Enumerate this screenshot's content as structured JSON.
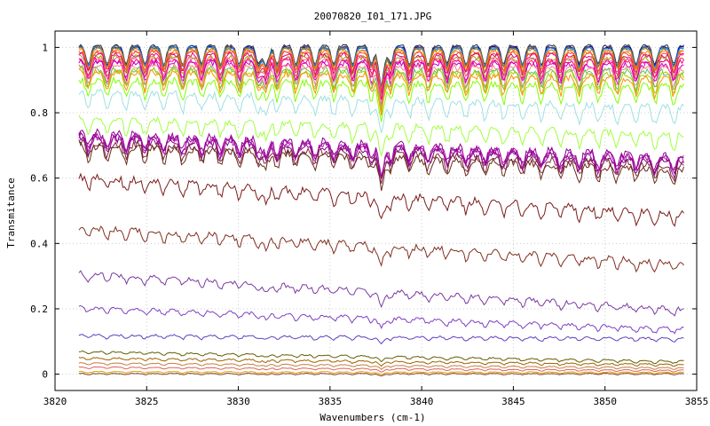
{
  "chart_data": {
    "type": "line",
    "title": "20070820_I01_171.JPG",
    "xlabel": "Wavenumbers (cm-1)",
    "ylabel": "Transmitance",
    "xlim": [
      3820,
      3855
    ],
    "ylim": [
      -0.05,
      1.05
    ],
    "x_range": [
      3821.3,
      3854.3
    ],
    "xticks": [
      3820,
      3825,
      3830,
      3835,
      3840,
      3845,
      3850,
      3855
    ],
    "yticks": [
      0,
      0.2,
      0.4,
      0.6,
      0.8,
      1
    ],
    "ytick_labels": [
      "0",
      "0.2",
      "0.4",
      "0.6",
      "0.8",
      "1"
    ],
    "grid": true,
    "absorption_lines": [
      {
        "x": 3831.5,
        "relative_depth": 0.45
      },
      {
        "x": 3837.8,
        "relative_depth": 0.9
      }
    ],
    "series": [
      {
        "color": "#2f2f2f",
        "start": 1.005,
        "end": 1.005,
        "noise": 0.004
      },
      {
        "color": "#4f4f4f",
        "start": 1.003,
        "end": 1.002,
        "noise": 0.004
      },
      {
        "color": "#0000c0",
        "start": 1.0,
        "end": 1.0,
        "noise": 0.003
      },
      {
        "color": "#6d6d6d",
        "start": 1.0,
        "end": 0.998,
        "noise": 0.004
      },
      {
        "color": "#0080ff",
        "start": 0.998,
        "end": 0.996,
        "noise": 0.004
      },
      {
        "color": "#c08000",
        "start": 0.995,
        "end": 0.992,
        "noise": 0.005
      },
      {
        "color": "#ff8000",
        "start": 0.99,
        "end": 0.985,
        "noise": 0.006
      },
      {
        "color": "#ff4040",
        "start": 0.985,
        "end": 0.98,
        "noise": 0.006
      },
      {
        "color": "#e00080",
        "start": 0.978,
        "end": 0.975,
        "noise": 0.007
      },
      {
        "color": "#a0a000",
        "start": 0.972,
        "end": 0.965,
        "noise": 0.007
      },
      {
        "color": "#ff60a0",
        "start": 0.965,
        "end": 0.96,
        "noise": 0.008
      },
      {
        "color": "#ff0080",
        "start": 0.96,
        "end": 0.955,
        "noise": 0.008
      },
      {
        "color": "#c000c0",
        "start": 0.955,
        "end": 0.945,
        "noise": 0.009
      },
      {
        "color": "#ff8080",
        "start": 0.945,
        "end": 0.935,
        "noise": 0.009
      },
      {
        "color": "#60c060",
        "start": 0.935,
        "end": 0.925,
        "noise": 0.01
      },
      {
        "color": "#a0d000",
        "start": 0.93,
        "end": 0.915,
        "noise": 0.01
      },
      {
        "color": "#ff9000",
        "start": 0.925,
        "end": 0.905,
        "noise": 0.011
      },
      {
        "color": "#80ff00",
        "start": 0.9,
        "end": 0.88,
        "noise": 0.011
      },
      {
        "color": "#a0e0e0",
        "start": 0.865,
        "end": 0.815,
        "noise": 0.011
      },
      {
        "color": "#a0ff40",
        "start": 0.785,
        "end": 0.735,
        "noise": 0.011
      },
      {
        "color": "#8b008b",
        "start": 0.74,
        "end": 0.665,
        "noise": 0.013
      },
      {
        "color": "#b000b0",
        "start": 0.735,
        "end": 0.66,
        "noise": 0.013
      },
      {
        "color": "#a020a0",
        "start": 0.73,
        "end": 0.655,
        "noise": 0.013
      },
      {
        "color": "#900090",
        "start": 0.725,
        "end": 0.65,
        "noise": 0.013
      },
      {
        "color": "#7a2a40",
        "start": 0.71,
        "end": 0.64,
        "noise": 0.012
      },
      {
        "color": "#6b2b1b",
        "start": 0.7,
        "end": 0.625,
        "noise": 0.012
      },
      {
        "color": "#7b1b1b",
        "start": 0.605,
        "end": 0.49,
        "noise": 0.011
      },
      {
        "color": "#803020",
        "start": 0.45,
        "end": 0.34,
        "noise": 0.009
      },
      {
        "color": "#7a3aa0",
        "start": 0.31,
        "end": 0.2,
        "noise": 0.007
      },
      {
        "color": "#8040c0",
        "start": 0.205,
        "end": 0.14,
        "noise": 0.005
      },
      {
        "color": "#6040c0",
        "start": 0.12,
        "end": 0.11,
        "noise": 0.003
      },
      {
        "color": "#606000",
        "start": 0.07,
        "end": 0.04,
        "noise": 0.002
      },
      {
        "color": "#a06000",
        "start": 0.05,
        "end": 0.03,
        "noise": 0.002
      },
      {
        "color": "#c08040",
        "start": 0.035,
        "end": 0.02,
        "noise": 0.001
      },
      {
        "color": "#e06060",
        "start": 0.022,
        "end": 0.012,
        "noise": 0.001
      },
      {
        "color": "#e0a000",
        "start": 0.008,
        "end": 0.006,
        "noise": 0.001
      },
      {
        "color": "#804020",
        "start": 0.002,
        "end": 0.002,
        "noise": 0.001
      }
    ]
  }
}
